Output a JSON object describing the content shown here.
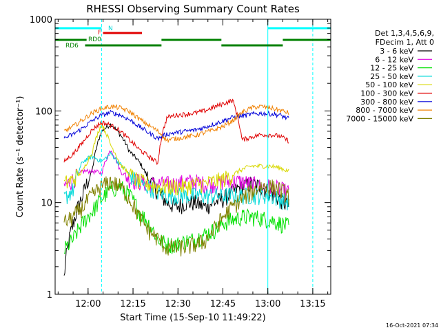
{
  "chart_data": {
    "type": "line",
    "title": "RHESSI Observing Summary Count Rates",
    "xlabel": "Start Time (15-Sep-10 11:49:22)",
    "ylabel": "Count Rate (s⁻¹ detector⁻¹)",
    "y_scale": "log",
    "ylim": [
      1,
      1000
    ],
    "xlim_minutes_since_start": [
      0,
      92
    ],
    "x_ticks": [
      "12:00",
      "12:15",
      "12:30",
      "12:45",
      "13:00",
      "13:15"
    ],
    "y_ticks": [
      "1",
      "10",
      "100",
      "1000"
    ],
    "legend_header": [
      "Det 1,3,4,5,6,9,",
      "FDecim 1, Att 0"
    ],
    "legend_placement": "right",
    "footer": "16-Oct-2021 07:34",
    "data_start_time": "11:52",
    "data_end_time": "13:07",
    "series": [
      {
        "name": "3 - 6 keV",
        "color": "#000000",
        "values": [
          1.5,
          6,
          12,
          22,
          60,
          72,
          55,
          36,
          28,
          18,
          13,
          10,
          9,
          10,
          10,
          9,
          10,
          11,
          13,
          15,
          16,
          15,
          13,
          11,
          9
        ]
      },
      {
        "name": "6 - 12 keV",
        "color": "#e000e0",
        "values": [
          15,
          18,
          22,
          22,
          21,
          38,
          22,
          18,
          17,
          16,
          16,
          16,
          16,
          17,
          17,
          16,
          16,
          17,
          17,
          17,
          16,
          15,
          15,
          14,
          13
        ]
      },
      {
        "name": "12 - 25 keV",
        "color": "#00e000",
        "values": [
          3,
          4,
          6,
          8,
          11,
          14,
          15,
          12,
          8,
          6,
          4,
          3.5,
          3.5,
          3.8,
          4,
          4.5,
          5,
          6,
          6.5,
          7,
          7,
          6.8,
          6.5,
          6,
          5.5
        ]
      },
      {
        "name": "25 - 50 keV",
        "color": "#00d8d8",
        "values": [
          11,
          14,
          28,
          32,
          28,
          34,
          26,
          20,
          16,
          15,
          13,
          12,
          12,
          12,
          12,
          12,
          12,
          12,
          12,
          12,
          12,
          12,
          12,
          11,
          10
        ]
      },
      {
        "name": "50 - 100 keV",
        "color": "#d8d800",
        "values": [
          16,
          18,
          22,
          35,
          72,
          42,
          26,
          20,
          17,
          16,
          15,
          15,
          15,
          15,
          16,
          16,
          17,
          18,
          20,
          23,
          25,
          25,
          25,
          24,
          22
        ]
      },
      {
        "name": "100 - 300 keV",
        "color": "#e00000",
        "values": [
          28,
          34,
          45,
          62,
          75,
          70,
          60,
          48,
          38,
          32,
          27,
          85,
          90,
          92,
          95,
          100,
          110,
          120,
          130,
          48,
          52,
          55,
          55,
          53,
          47
        ]
      },
      {
        "name": "300 - 800 keV",
        "color": "#0000d8",
        "values": [
          50,
          56,
          65,
          78,
          90,
          96,
          90,
          80,
          68,
          58,
          50,
          56,
          58,
          60,
          62,
          66,
          72,
          78,
          85,
          88,
          92,
          94,
          93,
          90,
          82
        ]
      },
      {
        "name": "800 - 7000 keV",
        "color": "#f08000",
        "values": [
          60,
          68,
          80,
          95,
          106,
          112,
          108,
          98,
          82,
          70,
          60,
          48,
          50,
          52,
          54,
          58,
          62,
          68,
          78,
          96,
          108,
          112,
          108,
          102,
          95
        ]
      },
      {
        "name": "7000 - 15000 keV",
        "color": "#808000",
        "values": [
          6,
          7,
          9,
          12,
          15,
          17,
          15,
          11,
          7,
          5,
          4,
          3.2,
          3.2,
          3.3,
          3.5,
          3.8,
          5,
          7,
          9,
          11,
          13,
          15,
          15,
          14,
          12
        ]
      }
    ],
    "state_bars": [
      {
        "name": "N",
        "color": "#00ffff",
        "segments": [
          [
            0,
            15.5
          ],
          [
            71,
            92
          ]
        ],
        "level": "top"
      },
      {
        "name": "F",
        "color": "#e00000",
        "segments": [
          [
            16,
            29
          ]
        ],
        "level": "high"
      },
      {
        "name": "RD0",
        "color": "#008000",
        "segments": [
          [
            0,
            10.5
          ],
          [
            35.5,
            55.5
          ],
          [
            76,
            92
          ]
        ],
        "level": "mid"
      },
      {
        "name": "RD6",
        "color": "#008000",
        "segments": [
          [
            10,
            35.5
          ],
          [
            55.5,
            76
          ]
        ],
        "level": "low"
      }
    ],
    "saa_lines_minutes": [
      15.5,
      86
    ],
    "night_lines_minutes": [
      0,
      71
    ]
  }
}
